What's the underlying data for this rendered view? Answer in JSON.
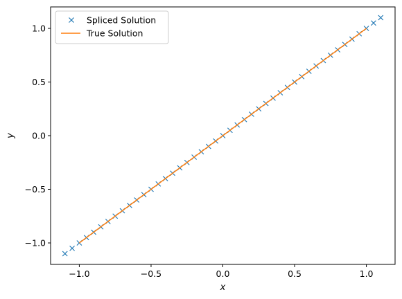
{
  "chart_data": {
    "type": "line",
    "title": "",
    "xlabel": "x",
    "ylabel": "y",
    "xlim": [
      -1.2,
      1.2
    ],
    "ylim": [
      -1.2,
      1.2
    ],
    "grid": false,
    "legend_position": "top-left",
    "x_ticks": [
      -1.0,
      -0.5,
      0.0,
      0.5,
      1.0
    ],
    "x_tick_labels": [
      "−1.0",
      "−0.5",
      "0.0",
      "0.5",
      "1.0"
    ],
    "y_ticks": [
      -1.0,
      -0.5,
      0.0,
      0.5,
      1.0
    ],
    "y_tick_labels": [
      "−1.0",
      "−0.5",
      "0.0",
      "0.5",
      "1.0"
    ],
    "series": [
      {
        "name": "Spliced Solution",
        "style": "markers-x",
        "color": "#1f77b4",
        "x": [
          -1.1,
          -1.05,
          -1.0,
          -0.95,
          -0.9,
          -0.85,
          -0.8,
          -0.75,
          -0.7,
          -0.65,
          -0.6,
          -0.55,
          -0.5,
          -0.45,
          -0.4,
          -0.35,
          -0.3,
          -0.25,
          -0.2,
          -0.15,
          -0.1,
          -0.05,
          0.0,
          0.05,
          0.1,
          0.15,
          0.2,
          0.25,
          0.3,
          0.35,
          0.4,
          0.45,
          0.5,
          0.55,
          0.6,
          0.65,
          0.7,
          0.75,
          0.8,
          0.85,
          0.9,
          0.95,
          1.0,
          1.05,
          1.1
        ],
        "y": [
          -1.1,
          -1.05,
          -1.0,
          -0.95,
          -0.9,
          -0.85,
          -0.8,
          -0.75,
          -0.7,
          -0.65,
          -0.6,
          -0.55,
          -0.5,
          -0.45,
          -0.4,
          -0.35,
          -0.3,
          -0.25,
          -0.2,
          -0.15,
          -0.1,
          -0.05,
          0.0,
          0.05,
          0.1,
          0.15,
          0.2,
          0.25,
          0.3,
          0.35,
          0.4,
          0.45,
          0.5,
          0.55,
          0.6,
          0.65,
          0.7,
          0.75,
          0.8,
          0.85,
          0.9,
          0.95,
          1.0,
          1.05,
          1.1
        ]
      },
      {
        "name": "True Solution",
        "style": "line",
        "color": "#ff7f0e",
        "x": [
          -1.0,
          1.0
        ],
        "y": [
          -1.0,
          1.0
        ]
      }
    ]
  }
}
